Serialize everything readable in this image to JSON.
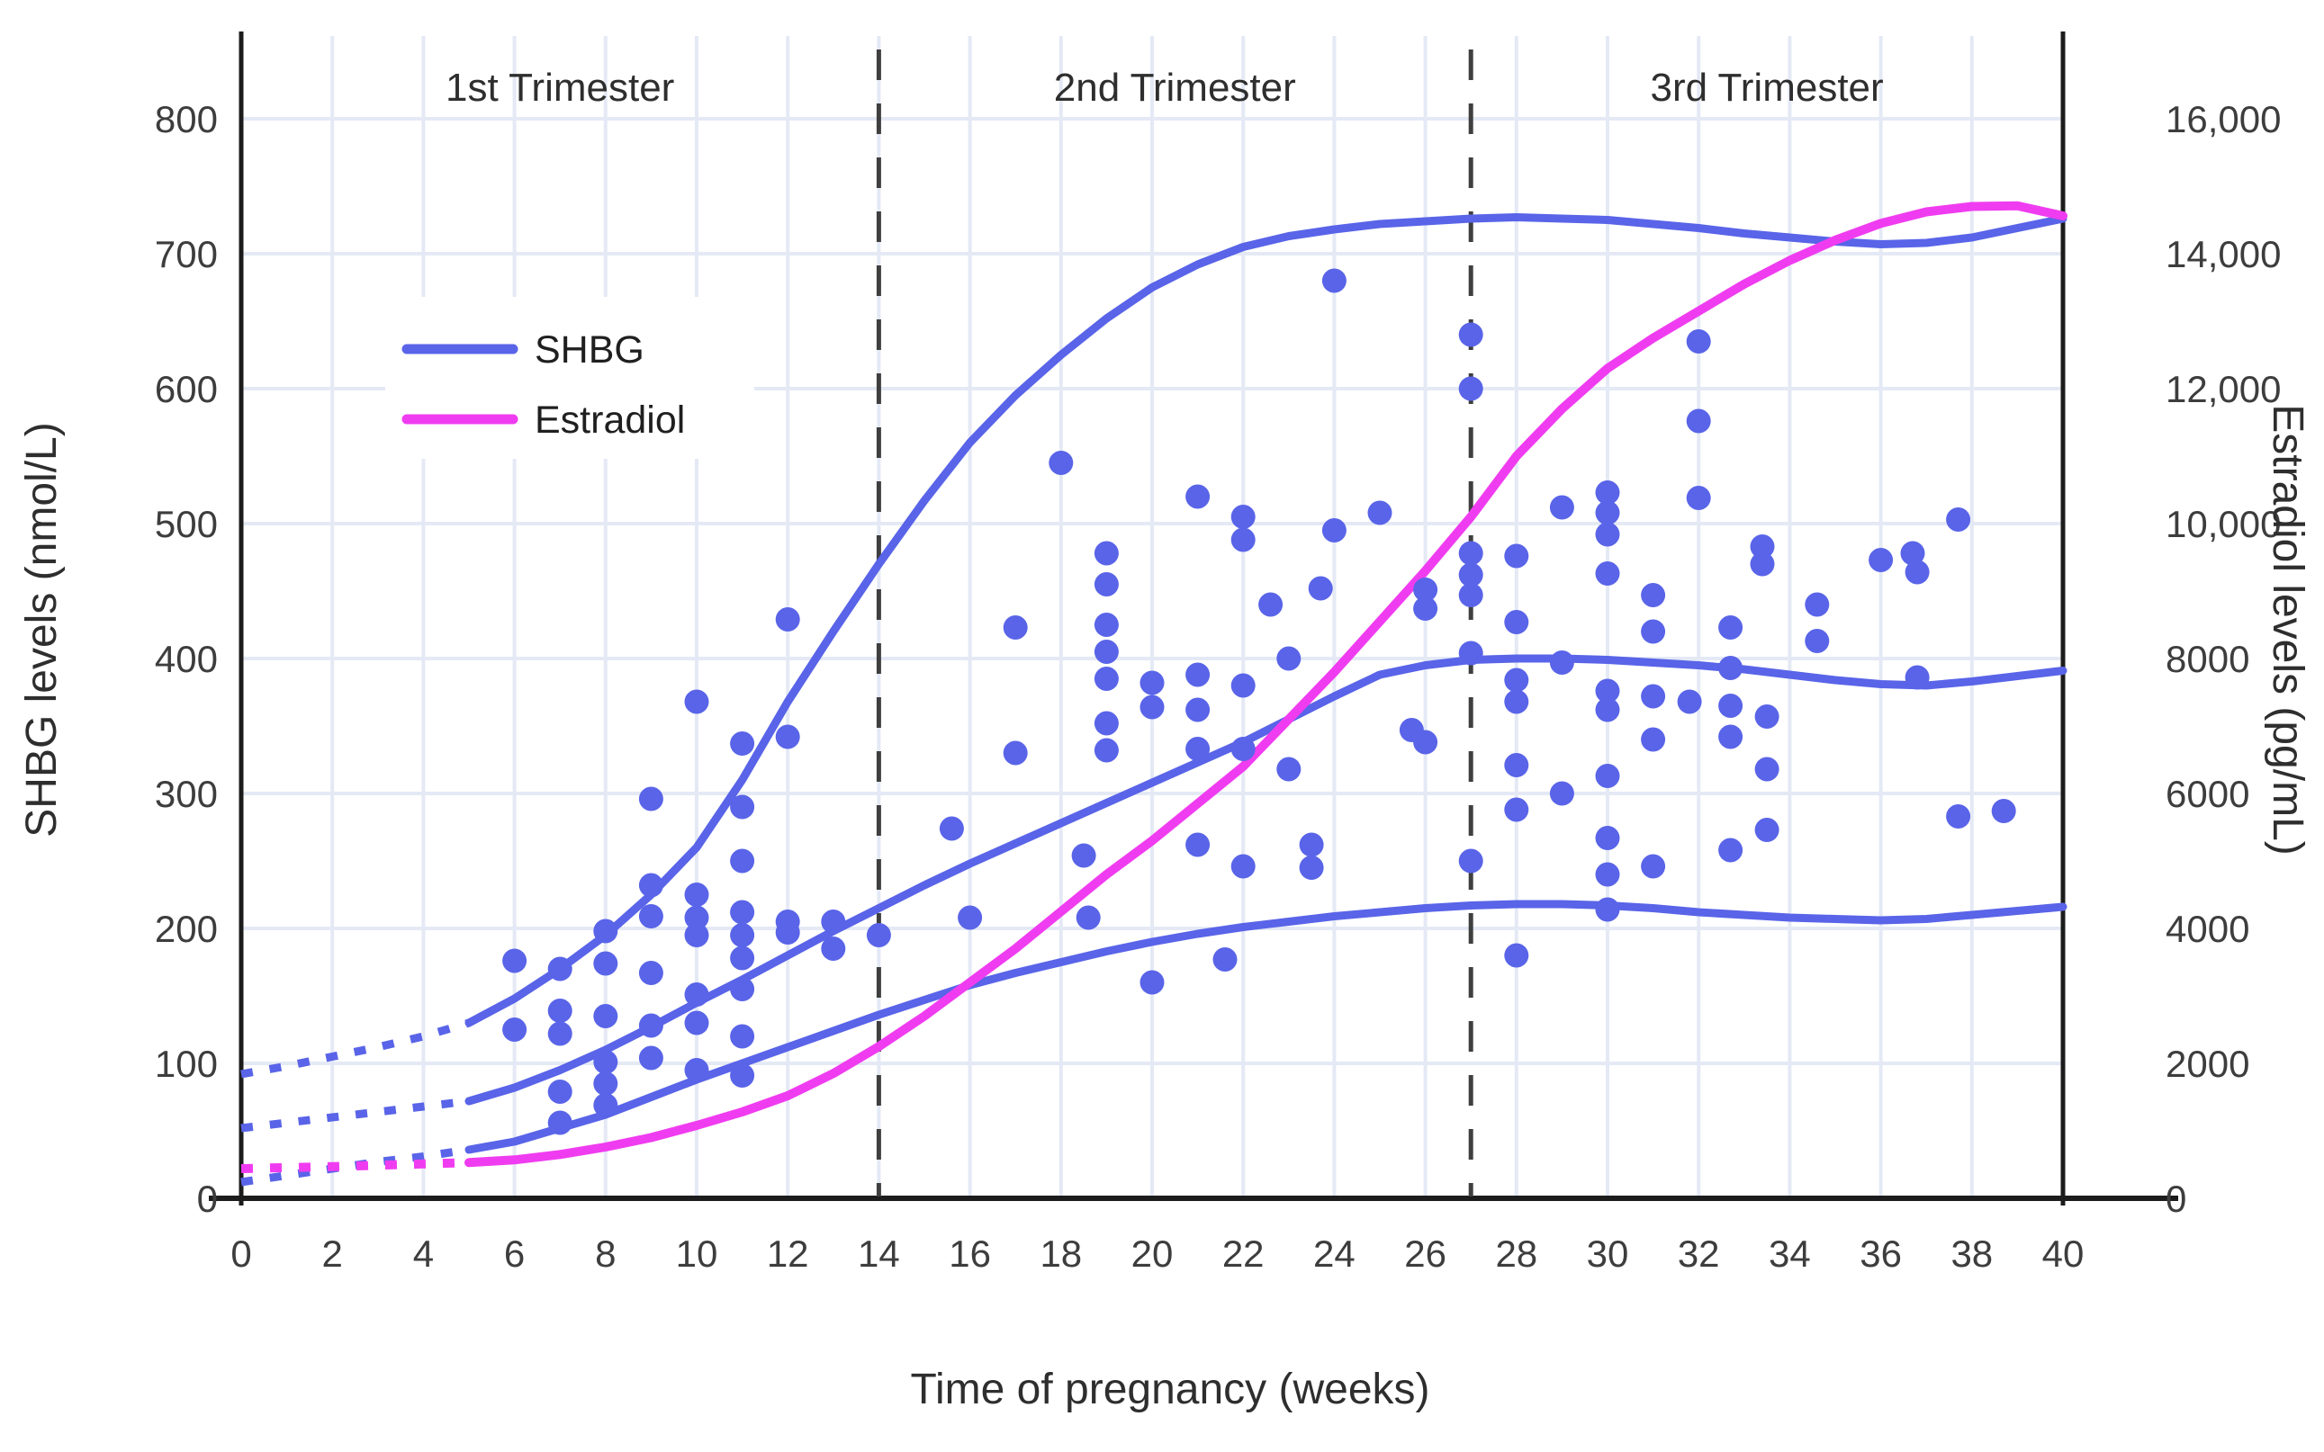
{
  "chart_data": {
    "type": "scatter",
    "title": "",
    "xlabel": "Time of pregnancy (weeks)",
    "ylabel_left": "SHBG levels (nmol/L)",
    "ylabel_right": "Estradiol levels (pg/mL)",
    "xlim": [
      0,
      40
    ],
    "ylim_left": [
      0,
      800
    ],
    "ylim_right": [
      0,
      16000
    ],
    "grid": true,
    "x_ticks": [
      0,
      2,
      4,
      6,
      8,
      10,
      12,
      14,
      16,
      18,
      20,
      22,
      24,
      26,
      28,
      30,
      32,
      34,
      36,
      38,
      40
    ],
    "y_ticks_left": [
      0,
      100,
      200,
      300,
      400,
      500,
      600,
      700,
      800
    ],
    "y_ticks_left_labels": [
      "0",
      "100",
      "200",
      "300",
      "400",
      "500",
      "600",
      "700",
      "800"
    ],
    "y_ticks_right": [
      0,
      2000,
      4000,
      6000,
      8000,
      10000,
      12000,
      14000,
      16000
    ],
    "y_ticks_right_labels": [
      "0",
      "2000",
      "4000",
      "6000",
      "8000",
      "10,000",
      "12,000",
      "14,000",
      "16,000"
    ],
    "trimester_dividers_weeks": [
      14,
      27
    ],
    "trimester_labels": [
      "1st Trimester",
      "2nd Trimester",
      "3rd Trimester"
    ],
    "trimester_label_center_weeks": [
      7,
      20.5,
      33.5
    ],
    "legend": {
      "entries": [
        {
          "label": "SHBG",
          "color": "#5964e8"
        },
        {
          "label": "Estradiol",
          "color": "#f03cf0"
        }
      ],
      "position": "upper-left-inside"
    },
    "dotted_until_week": 5,
    "shbg_percentile_curves": [
      {
        "name": "upper",
        "points": [
          [
            0,
            92
          ],
          [
            1,
            98
          ],
          [
            2,
            105
          ],
          [
            3,
            112
          ],
          [
            4,
            120
          ],
          [
            5,
            130
          ],
          [
            6,
            148
          ],
          [
            7,
            170
          ],
          [
            8,
            195
          ],
          [
            9,
            225
          ],
          [
            10,
            260
          ],
          [
            11,
            310
          ],
          [
            12,
            368
          ],
          [
            13,
            420
          ],
          [
            14,
            470
          ],
          [
            15,
            517
          ],
          [
            16,
            560
          ],
          [
            17,
            595
          ],
          [
            18,
            625
          ],
          [
            19,
            652
          ],
          [
            20,
            675
          ],
          [
            21,
            692
          ],
          [
            22,
            705
          ],
          [
            23,
            713
          ],
          [
            24,
            718
          ],
          [
            25,
            722
          ],
          [
            26,
            724
          ],
          [
            27,
            726
          ],
          [
            28,
            727
          ],
          [
            29,
            726
          ],
          [
            30,
            725
          ],
          [
            31,
            722
          ],
          [
            32,
            719
          ],
          [
            33,
            715
          ],
          [
            34,
            712
          ],
          [
            35,
            709
          ],
          [
            36,
            707
          ],
          [
            37,
            708
          ],
          [
            38,
            712
          ],
          [
            39,
            719
          ],
          [
            40,
            726
          ]
        ]
      },
      {
        "name": "median",
        "points": [
          [
            0,
            52
          ],
          [
            1,
            56
          ],
          [
            2,
            60
          ],
          [
            3,
            64
          ],
          [
            4,
            68
          ],
          [
            5,
            72
          ],
          [
            6,
            82
          ],
          [
            7,
            95
          ],
          [
            8,
            110
          ],
          [
            9,
            127
          ],
          [
            10,
            145
          ],
          [
            11,
            162
          ],
          [
            12,
            180
          ],
          [
            13,
            198
          ],
          [
            14,
            215
          ],
          [
            15,
            232
          ],
          [
            16,
            248
          ],
          [
            17,
            263
          ],
          [
            18,
            278
          ],
          [
            19,
            293
          ],
          [
            20,
            308
          ],
          [
            21,
            323
          ],
          [
            22,
            338
          ],
          [
            23,
            355
          ],
          [
            24,
            372
          ],
          [
            25,
            388
          ],
          [
            26,
            395
          ],
          [
            27,
            399
          ],
          [
            28,
            400
          ],
          [
            29,
            400
          ],
          [
            30,
            399
          ],
          [
            31,
            397
          ],
          [
            32,
            395
          ],
          [
            33,
            392
          ],
          [
            34,
            388
          ],
          [
            35,
            384
          ],
          [
            36,
            381
          ],
          [
            37,
            380
          ],
          [
            38,
            383
          ],
          [
            39,
            387
          ],
          [
            40,
            391
          ]
        ]
      },
      {
        "name": "lower",
        "points": [
          [
            0,
            12
          ],
          [
            1,
            17
          ],
          [
            2,
            22
          ],
          [
            3,
            27
          ],
          [
            4,
            31
          ],
          [
            5,
            36
          ],
          [
            6,
            42
          ],
          [
            7,
            52
          ],
          [
            8,
            62
          ],
          [
            9,
            75
          ],
          [
            10,
            88
          ],
          [
            11,
            100
          ],
          [
            12,
            112
          ],
          [
            13,
            124
          ],
          [
            14,
            136
          ],
          [
            15,
            147
          ],
          [
            16,
            158
          ],
          [
            17,
            167
          ],
          [
            18,
            175
          ],
          [
            19,
            183
          ],
          [
            20,
            190
          ],
          [
            21,
            196
          ],
          [
            22,
            201
          ],
          [
            23,
            205
          ],
          [
            24,
            209
          ],
          [
            25,
            212
          ],
          [
            26,
            215
          ],
          [
            27,
            217
          ],
          [
            28,
            218
          ],
          [
            29,
            218
          ],
          [
            30,
            217
          ],
          [
            31,
            215
          ],
          [
            32,
            212
          ],
          [
            33,
            210
          ],
          [
            34,
            208
          ],
          [
            35,
            207
          ],
          [
            36,
            206
          ],
          [
            37,
            207
          ],
          [
            38,
            210
          ],
          [
            39,
            213
          ],
          [
            40,
            216
          ]
        ]
      }
    ],
    "estradiol_curve_pg_ml": [
      [
        0,
        440
      ],
      [
        1,
        455
      ],
      [
        2,
        470
      ],
      [
        3,
        490
      ],
      [
        4,
        510
      ],
      [
        5,
        530
      ],
      [
        6,
        570
      ],
      [
        7,
        650
      ],
      [
        8,
        760
      ],
      [
        9,
        900
      ],
      [
        10,
        1080
      ],
      [
        11,
        1280
      ],
      [
        12,
        1520
      ],
      [
        13,
        1850
      ],
      [
        14,
        2250
      ],
      [
        15,
        2700
      ],
      [
        16,
        3200
      ],
      [
        17,
        3700
      ],
      [
        18,
        4250
      ],
      [
        19,
        4800
      ],
      [
        20,
        5300
      ],
      [
        21,
        5850
      ],
      [
        22,
        6400
      ],
      [
        23,
        7100
      ],
      [
        24,
        7800
      ],
      [
        25,
        8550
      ],
      [
        26,
        9300
      ],
      [
        27,
        10100
      ],
      [
        28,
        11000
      ],
      [
        29,
        11700
      ],
      [
        30,
        12300
      ],
      [
        31,
        12750
      ],
      [
        32,
        13150
      ],
      [
        33,
        13550
      ],
      [
        34,
        13900
      ],
      [
        35,
        14200
      ],
      [
        36,
        14450
      ],
      [
        37,
        14620
      ],
      [
        38,
        14700
      ],
      [
        39,
        14710
      ],
      [
        40,
        14560
      ]
    ],
    "shbg_scatter_points": [
      [
        6,
        176
      ],
      [
        6,
        125
      ],
      [
        7,
        170
      ],
      [
        7,
        139
      ],
      [
        7,
        122
      ],
      [
        7,
        79
      ],
      [
        7,
        56
      ],
      [
        8,
        198
      ],
      [
        8,
        174
      ],
      [
        8,
        135
      ],
      [
        8,
        101
      ],
      [
        8,
        85
      ],
      [
        8,
        69
      ],
      [
        9,
        296
      ],
      [
        9,
        232
      ],
      [
        9,
        209
      ],
      [
        9,
        167
      ],
      [
        9,
        128
      ],
      [
        9,
        104
      ],
      [
        10,
        368
      ],
      [
        10,
        225
      ],
      [
        10,
        208
      ],
      [
        10,
        195
      ],
      [
        10,
        151
      ],
      [
        10,
        130
      ],
      [
        10,
        95
      ],
      [
        11,
        337
      ],
      [
        11,
        290
      ],
      [
        11,
        250
      ],
      [
        11,
        212
      ],
      [
        11,
        195
      ],
      [
        11,
        178
      ],
      [
        11,
        155
      ],
      [
        11,
        120
      ],
      [
        11,
        91
      ],
      [
        12,
        429
      ],
      [
        12,
        342
      ],
      [
        12,
        205
      ],
      [
        12,
        197
      ],
      [
        13,
        205
      ],
      [
        13,
        185
      ],
      [
        14,
        195
      ],
      [
        15.6,
        274
      ],
      [
        16,
        208
      ],
      [
        17,
        423
      ],
      [
        17,
        330
      ],
      [
        18,
        545
      ],
      [
        18.5,
        254
      ],
      [
        18.6,
        208
      ],
      [
        19,
        478
      ],
      [
        19,
        455
      ],
      [
        19,
        425
      ],
      [
        19,
        405
      ],
      [
        19,
        385
      ],
      [
        19,
        352
      ],
      [
        19,
        332
      ],
      [
        20,
        382
      ],
      [
        20,
        364
      ],
      [
        20,
        160
      ],
      [
        21,
        520
      ],
      [
        21,
        388
      ],
      [
        21,
        362
      ],
      [
        21,
        333
      ],
      [
        21,
        262
      ],
      [
        21.6,
        177
      ],
      [
        22,
        505
      ],
      [
        22,
        488
      ],
      [
        22,
        380
      ],
      [
        22,
        333
      ],
      [
        22,
        246
      ],
      [
        22.6,
        440
      ],
      [
        23,
        400
      ],
      [
        23,
        318
      ],
      [
        23.5,
        262
      ],
      [
        23.5,
        245
      ],
      [
        23.7,
        452
      ],
      [
        24,
        680
      ],
      [
        24,
        495
      ],
      [
        25,
        508
      ],
      [
        25.7,
        347
      ],
      [
        26,
        451
      ],
      [
        26,
        437
      ],
      [
        26,
        338
      ],
      [
        27,
        640
      ],
      [
        27,
        600
      ],
      [
        27,
        478
      ],
      [
        27,
        462
      ],
      [
        27,
        447
      ],
      [
        27,
        404
      ],
      [
        27,
        250
      ],
      [
        28,
        476
      ],
      [
        28,
        427
      ],
      [
        28,
        384
      ],
      [
        28,
        368
      ],
      [
        28,
        321
      ],
      [
        28,
        288
      ],
      [
        28,
        180
      ],
      [
        29,
        512
      ],
      [
        29,
        397
      ],
      [
        29,
        300
      ],
      [
        30,
        523
      ],
      [
        30,
        508
      ],
      [
        30,
        492
      ],
      [
        30,
        463
      ],
      [
        30,
        376
      ],
      [
        30,
        362
      ],
      [
        30,
        313
      ],
      [
        30,
        267
      ],
      [
        30,
        240
      ],
      [
        30,
        214
      ],
      [
        31,
        447
      ],
      [
        31,
        420
      ],
      [
        31,
        372
      ],
      [
        31,
        340
      ],
      [
        31,
        246
      ],
      [
        31.8,
        368
      ],
      [
        32,
        635
      ],
      [
        32,
        576
      ],
      [
        32,
        519
      ],
      [
        32.7,
        423
      ],
      [
        32.7,
        393
      ],
      [
        32.7,
        365
      ],
      [
        32.7,
        342
      ],
      [
        32.7,
        258
      ],
      [
        33.4,
        483
      ],
      [
        33.4,
        470
      ],
      [
        33.5,
        357
      ],
      [
        33.5,
        318
      ],
      [
        33.5,
        273
      ],
      [
        34.6,
        440
      ],
      [
        34.6,
        413
      ],
      [
        36,
        473
      ],
      [
        36.7,
        478
      ],
      [
        36.8,
        464
      ],
      [
        36.8,
        386
      ],
      [
        37.7,
        503
      ],
      [
        37.7,
        283
      ],
      [
        38.7,
        287
      ]
    ],
    "colors": {
      "shbg": "#5964e8",
      "estradiol": "#f03cf0",
      "grid": "#e4e9f5",
      "axis": "#1c1c1c",
      "divider": "#3f3f3f",
      "text": "#3d3d3d"
    }
  }
}
